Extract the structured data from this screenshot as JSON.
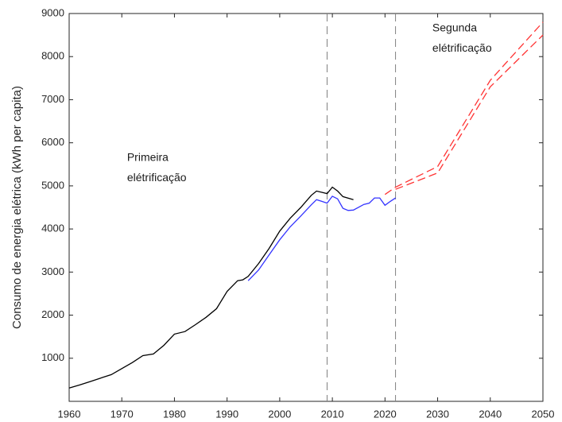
{
  "chart_data": {
    "type": "line",
    "ylabel": "Consumo de energia elétrica (kWh per capita)",
    "annotations": [
      {
        "text": "Primeira",
        "x": 1971,
        "y": 5650
      },
      {
        "text": "elétrificação",
        "x": 1971,
        "y": 5180
      },
      {
        "text": "Segunda",
        "x": 2029,
        "y": 8650
      },
      {
        "text": "elétrificação",
        "x": 2029,
        "y": 8180
      }
    ],
    "xlim": [
      1960,
      2050
    ],
    "ylim": [
      0,
      9000
    ],
    "xticks": [
      1960,
      1970,
      1980,
      1990,
      2000,
      2010,
      2020,
      2030,
      2040,
      2050
    ],
    "yticks": [
      1000,
      2000,
      3000,
      4000,
      5000,
      6000,
      7000,
      8000,
      9000
    ],
    "vlines": [
      2009,
      2022
    ],
    "vline_color": "#808080",
    "series": [
      {
        "color": "#000000",
        "dash": false,
        "x": [
          1960,
          1962,
          1964,
          1966,
          1968,
          1970,
          1972,
          1974,
          1976,
          1978,
          1980,
          1982,
          1984,
          1986,
          1988,
          1990,
          1992,
          1993,
          1994,
          1996,
          1998,
          2000,
          2002,
          2004,
          2006,
          2007,
          2008,
          2009,
          2010,
          2011,
          2012,
          2014
        ],
        "values": [
          310,
          380,
          460,
          540,
          620,
          760,
          900,
          1060,
          1100,
          1300,
          1560,
          1620,
          1780,
          1950,
          2150,
          2550,
          2800,
          2820,
          2900,
          3200,
          3550,
          3950,
          4250,
          4500,
          4780,
          4880,
          4850,
          4820,
          4970,
          4880,
          4750,
          4680
        ]
      },
      {
        "color": "#3333ff",
        "dash": false,
        "x": [
          1994,
          1996,
          1998,
          2000,
          2002,
          2004,
          2006,
          2007,
          2008,
          2009,
          2010,
          2011,
          2012,
          2013,
          2014,
          2016,
          2017,
          2018,
          2019,
          2020,
          2021,
          2022
        ],
        "values": [
          2800,
          3050,
          3400,
          3750,
          4050,
          4300,
          4560,
          4680,
          4640,
          4600,
          4760,
          4700,
          4480,
          4430,
          4440,
          4570,
          4600,
          4720,
          4720,
          4550,
          4640,
          4720
        ]
      },
      {
        "color": "#ff3333",
        "dash": true,
        "x": [
          2020,
          2022,
          2030,
          2040,
          2050
        ],
        "values": [
          4800,
          4970,
          5450,
          7450,
          8800
        ]
      },
      {
        "color": "#ff3333",
        "dash": true,
        "x": [
          2022,
          2030,
          2040,
          2050
        ],
        "values": [
          4920,
          5300,
          7300,
          8500
        ]
      }
    ]
  }
}
